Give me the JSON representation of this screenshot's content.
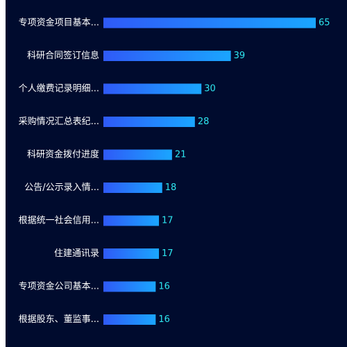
{
  "chart_data": {
    "type": "bar",
    "orientation": "horizontal",
    "categories": [
      "专项资金项目基本...",
      "科研合同签订信息",
      "个人缴费记录明细...",
      "采购情况汇总表纪...",
      "科研资金拨付进度",
      "公告/公示录入情...",
      "根据统一社会信用...",
      "住建通讯录",
      "专项资金公司基本...",
      "根据股东、董监事..."
    ],
    "values": [
      65,
      39,
      30,
      28,
      21,
      18,
      17,
      17,
      16,
      16
    ],
    "xlim": [
      0,
      65
    ],
    "grid": false,
    "colors": {
      "background": "#000b2e",
      "bar_start": "#2f5af7",
      "bar_end": "#1aa6ff",
      "category_text": "#ffffff",
      "value_text": "#2ee6f0"
    }
  }
}
